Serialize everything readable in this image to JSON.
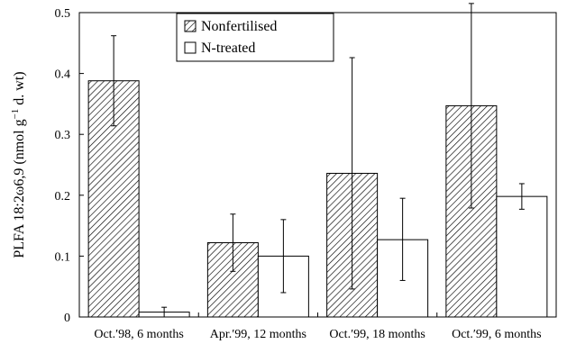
{
  "chart_data": {
    "type": "bar",
    "ylabel_parts": [
      "PLFA 18:2ω6,9 (nmol g",
      "−1",
      " d. wt)"
    ],
    "ylim": [
      0,
      0.5
    ],
    "yticks": [
      0,
      0.1,
      0.2,
      0.3,
      0.4,
      0.5
    ],
    "ytick_labels": [
      "0",
      "0.1",
      "0.2",
      "0.3",
      "0.4",
      "0.5"
    ],
    "categories": [
      "Oct.′98, 6 months",
      "Apr.′99, 12 months",
      "Oct.′99, 18 months",
      "Oct.′99, 6 months"
    ],
    "series": [
      {
        "name": "Nonfertilised",
        "pattern": "hatched",
        "values": [
          0.388,
          0.122,
          0.236,
          0.347
        ],
        "err_low": [
          0.314,
          0.075,
          0.046,
          0.179
        ],
        "err_high": [
          0.462,
          0.169,
          0.426,
          0.515
        ]
      },
      {
        "name": "N-treated",
        "pattern": "open",
        "values": [
          0.008,
          0.1,
          0.127,
          0.198
        ],
        "err_low": [
          0.0,
          0.04,
          0.06,
          0.177
        ],
        "err_high": [
          0.016,
          0.16,
          0.195,
          0.219
        ]
      }
    ],
    "legend": {
      "position": "top-left-inside"
    },
    "grid": false
  }
}
